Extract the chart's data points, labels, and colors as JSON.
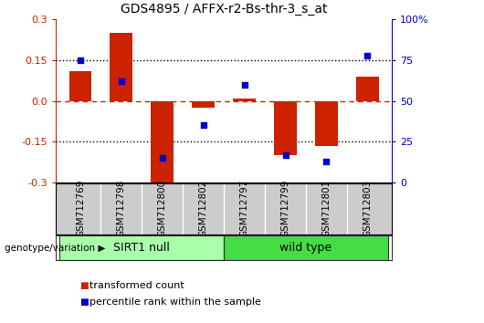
{
  "title": "GDS4895 / AFFX-r2-Bs-thr-3_s_at",
  "samples": [
    "GSM712769",
    "GSM712798",
    "GSM712800",
    "GSM712802",
    "GSM712797",
    "GSM712799",
    "GSM712801",
    "GSM712803"
  ],
  "bar_values": [
    0.11,
    0.25,
    -0.305,
    -0.025,
    0.01,
    -0.2,
    -0.165,
    0.09
  ],
  "dot_values": [
    75,
    62,
    15,
    35,
    60,
    17,
    13,
    78
  ],
  "ylim": [
    -0.3,
    0.3
  ],
  "yticks": [
    -0.3,
    -0.15,
    0.0,
    0.15,
    0.3
  ],
  "right_ylim": [
    0,
    100
  ],
  "right_yticks": [
    0,
    25,
    50,
    75,
    100
  ],
  "right_yticklabels": [
    "0",
    "25",
    "50",
    "75",
    "100%"
  ],
  "bar_color": "#cc2200",
  "dot_color": "#0000cc",
  "groups": [
    {
      "label": "SIRT1 null",
      "start": 0,
      "end": 3,
      "color": "#aaffaa"
    },
    {
      "label": "wild type",
      "start": 4,
      "end": 7,
      "color": "#44dd44"
    }
  ],
  "group_label": "genotype/variation",
  "legend_items": [
    {
      "label": "transformed count",
      "color": "#cc2200"
    },
    {
      "label": "percentile rank within the sample",
      "color": "#0000cc"
    }
  ],
  "background_color": "#ffffff",
  "tick_label_area_color": "#cccccc"
}
